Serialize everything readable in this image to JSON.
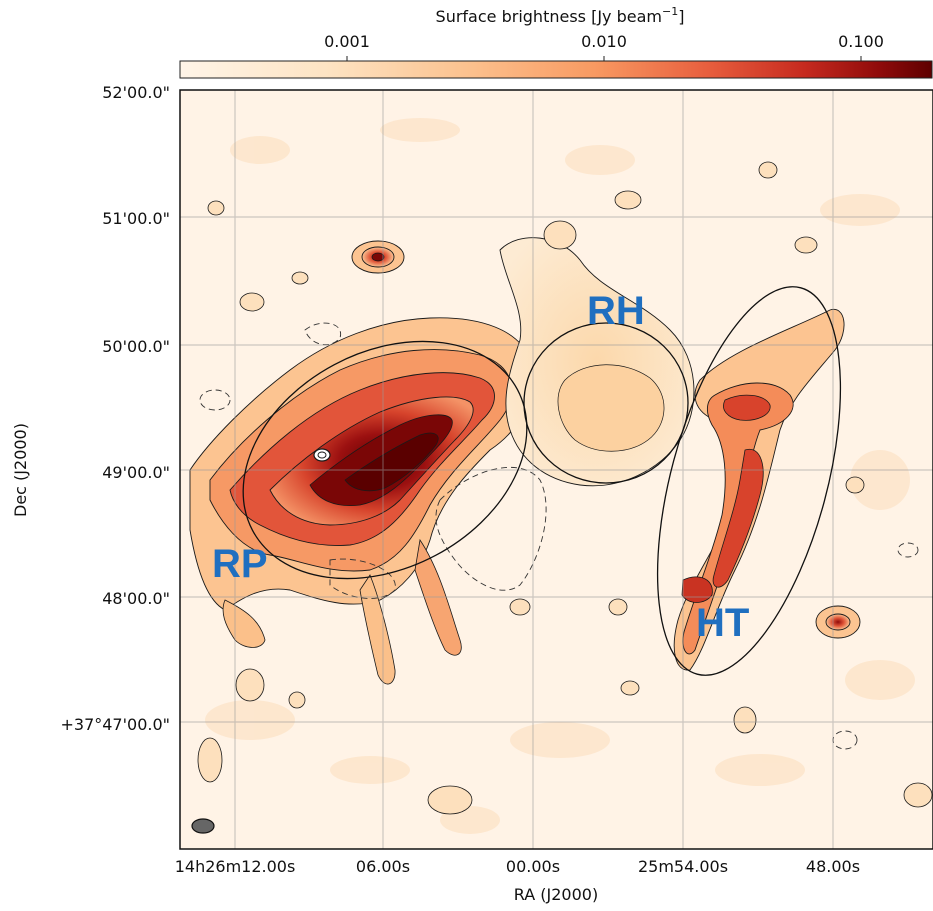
{
  "colorbar": {
    "title": "Surface brightness [Jy beam",
    "title_sup": "−1",
    "title_end": "]",
    "scale": "log",
    "ticks": [
      "0.001",
      "0.010",
      "0.100"
    ],
    "colormap": [
      "#fff5e8",
      "#fde3c2",
      "#fcc28f",
      "#f89a62",
      "#e85f3e",
      "#c62a1f",
      "#8f0a0a",
      "#5e0000"
    ]
  },
  "axes": {
    "xlabel": "RA (J2000)",
    "ylabel": "Dec (J2000)",
    "xticks": [
      "14h26m12.00s",
      "06.00s",
      "00.00s",
      "25m54.00s",
      "48.00s"
    ],
    "yticks": [
      "52'00.0\"",
      "51'00.0\"",
      "50'00.0\"",
      "49'00.0\"",
      "48'00.0\"",
      "+37°47'00.0\""
    ],
    "grid": true
  },
  "labels": {
    "rp": "RP",
    "rh": "RH",
    "ht": "HT"
  },
  "colors": {
    "background": "#fff3e6",
    "contour": "#1a1a1a",
    "label": "#1f6fc0"
  }
}
